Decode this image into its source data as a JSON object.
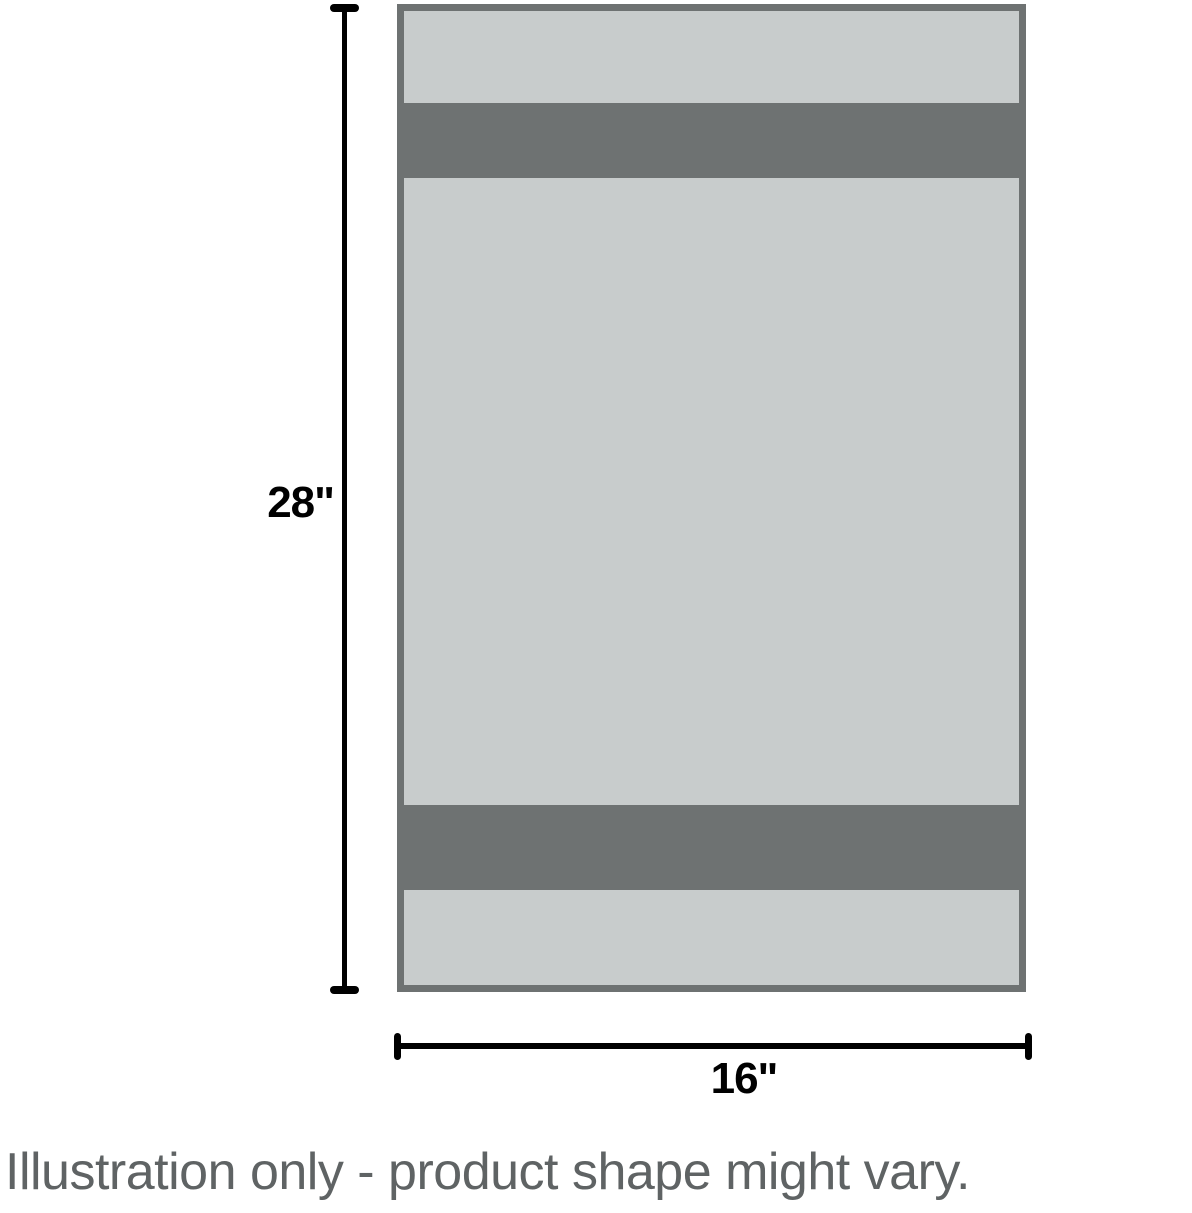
{
  "illustration": {
    "height_label": "28\"",
    "width_label": "16\"",
    "caption": "Illustration only - product shape might vary."
  },
  "colors": {
    "background": "#ffffff",
    "product-fill": "#c8cccc",
    "product-stripe": "#6e7272",
    "dimension-line": "#000000",
    "caption-text": "#5f6364"
  }
}
